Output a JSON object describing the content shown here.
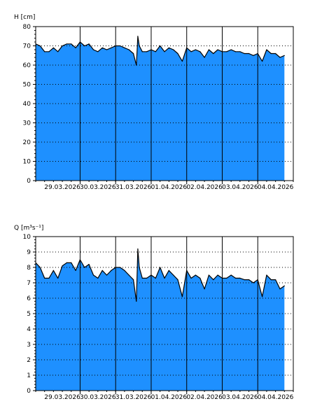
{
  "colors": {
    "fill": "#1E90FF",
    "line": "#000000",
    "grid": "#000000",
    "background": "#FFFFFF"
  },
  "chart_data": [
    {
      "type": "area",
      "title": "",
      "ylabel": "H [cm]",
      "xlabel": "",
      "ylim": [
        0,
        80
      ],
      "yticks": [
        0,
        10,
        20,
        30,
        40,
        50,
        60,
        70,
        80
      ],
      "xlim": [
        "2026-03-28T18:00",
        "2026-04-05T00:00"
      ],
      "x_tick_labels": [
        "29.03.2026",
        "30.03.2026",
        "31.03.2026",
        "01.04.2026",
        "02.04.2026",
        "03.04.2026",
        "04.04.2026"
      ],
      "grid": {
        "horizontal": "dotted",
        "vertical": "solid-at-day-boundaries"
      },
      "series": [
        {
          "x": [
            "2026-03-28T18:00",
            "2026-03-28T21:00",
            "2026-03-29T00:00",
            "2026-03-29T03:00",
            "2026-03-29T06:00",
            "2026-03-29T09:00",
            "2026-03-29T12:00",
            "2026-03-29T15:00",
            "2026-03-29T18:00",
            "2026-03-29T21:00",
            "2026-03-30T00:00",
            "2026-03-30T03:00",
            "2026-03-30T06:00",
            "2026-03-30T09:00",
            "2026-03-30T12:00",
            "2026-03-30T15:00",
            "2026-03-30T18:00",
            "2026-03-30T21:00",
            "2026-03-31T00:00",
            "2026-03-31T03:00",
            "2026-03-31T06:00",
            "2026-03-31T09:00",
            "2026-03-31T12:00",
            "2026-03-31T14:00",
            "2026-03-31T15:00",
            "2026-03-31T16:00",
            "2026-03-31T18:00",
            "2026-03-31T21:00",
            "2026-04-01T00:00",
            "2026-04-01T03:00",
            "2026-04-01T06:00",
            "2026-04-01T09:00",
            "2026-04-01T12:00",
            "2026-04-01T15:00",
            "2026-04-01T18:00",
            "2026-04-01T21:00",
            "2026-04-02T00:00",
            "2026-04-02T03:00",
            "2026-04-02T06:00",
            "2026-04-02T09:00",
            "2026-04-02T12:00",
            "2026-04-02T15:00",
            "2026-04-02T18:00",
            "2026-04-02T21:00",
            "2026-04-03T00:00",
            "2026-04-03T03:00",
            "2026-04-03T06:00",
            "2026-04-03T09:00",
            "2026-04-03T12:00",
            "2026-04-03T15:00",
            "2026-04-03T18:00",
            "2026-04-03T21:00",
            "2026-04-04T00:00",
            "2026-04-04T03:00",
            "2026-04-04T06:00",
            "2026-04-04T09:00",
            "2026-04-04T12:00",
            "2026-04-04T15:00",
            "2026-04-04T18:00"
          ],
          "y": [
            71,
            70,
            67,
            67,
            69,
            67,
            70,
            71,
            71,
            69,
            72,
            70,
            71,
            68,
            67,
            69,
            68,
            69,
            70,
            70,
            69,
            68,
            66,
            60,
            75,
            70,
            67,
            67,
            68,
            67,
            70,
            67,
            69,
            68,
            66,
            62,
            69,
            67,
            68,
            67,
            64,
            68,
            66,
            68,
            67,
            67,
            68,
            67,
            67,
            66,
            66,
            65,
            66,
            62,
            68,
            66,
            66,
            64,
            65
          ]
        }
      ]
    },
    {
      "type": "area",
      "title": "",
      "ylabel": "Q [m³s⁻¹]",
      "xlabel": "",
      "ylim": [
        0,
        10
      ],
      "yticks": [
        0,
        1,
        2,
        3,
        4,
        5,
        6,
        7,
        8,
        9,
        10
      ],
      "xlim": [
        "2026-03-28T18:00",
        "2026-04-05T00:00"
      ],
      "x_tick_labels": [
        "29.03.2026",
        "30.03.2026",
        "31.03.2026",
        "01.04.2026",
        "02.04.2026",
        "03.04.2026",
        "04.04.2026"
      ],
      "grid": {
        "horizontal": "dotted",
        "vertical": "solid-at-day-boundaries"
      },
      "series": [
        {
          "x": [
            "2026-03-28T18:00",
            "2026-03-28T21:00",
            "2026-03-29T00:00",
            "2026-03-29T03:00",
            "2026-03-29T06:00",
            "2026-03-29T09:00",
            "2026-03-29T12:00",
            "2026-03-29T15:00",
            "2026-03-29T18:00",
            "2026-03-29T21:00",
            "2026-03-30T00:00",
            "2026-03-30T03:00",
            "2026-03-30T06:00",
            "2026-03-30T09:00",
            "2026-03-30T12:00",
            "2026-03-30T15:00",
            "2026-03-30T18:00",
            "2026-03-30T21:00",
            "2026-03-31T00:00",
            "2026-03-31T03:00",
            "2026-03-31T06:00",
            "2026-03-31T09:00",
            "2026-03-31T12:00",
            "2026-03-31T14:00",
            "2026-03-31T15:00",
            "2026-03-31T16:00",
            "2026-03-31T18:00",
            "2026-03-31T21:00",
            "2026-04-01T00:00",
            "2026-04-01T03:00",
            "2026-04-01T06:00",
            "2026-04-01T09:00",
            "2026-04-01T12:00",
            "2026-04-01T15:00",
            "2026-04-01T18:00",
            "2026-04-01T21:00",
            "2026-04-02T00:00",
            "2026-04-02T03:00",
            "2026-04-02T06:00",
            "2026-04-02T09:00",
            "2026-04-02T12:00",
            "2026-04-02T15:00",
            "2026-04-02T18:00",
            "2026-04-02T21:00",
            "2026-04-03T00:00",
            "2026-04-03T03:00",
            "2026-04-03T06:00",
            "2026-04-03T09:00",
            "2026-04-03T12:00",
            "2026-04-03T15:00",
            "2026-04-03T18:00",
            "2026-04-03T21:00",
            "2026-04-04T00:00",
            "2026-04-04T03:00",
            "2026-04-04T06:00",
            "2026-04-04T09:00",
            "2026-04-04T12:00",
            "2026-04-04T15:00",
            "2026-04-04T18:00"
          ],
          "y": [
            8.3,
            8.0,
            7.3,
            7.3,
            7.8,
            7.3,
            8.1,
            8.3,
            8.3,
            7.8,
            8.5,
            8.0,
            8.2,
            7.5,
            7.3,
            7.8,
            7.5,
            7.8,
            8.0,
            8.0,
            7.8,
            7.5,
            7.2,
            5.8,
            9.2,
            8.0,
            7.3,
            7.3,
            7.5,
            7.3,
            8.0,
            7.3,
            7.8,
            7.5,
            7.2,
            6.1,
            7.8,
            7.3,
            7.5,
            7.3,
            6.6,
            7.5,
            7.2,
            7.5,
            7.3,
            7.3,
            7.5,
            7.3,
            7.3,
            7.2,
            7.2,
            7.0,
            7.2,
            6.1,
            7.5,
            7.2,
            7.2,
            6.6,
            6.8
          ]
        }
      ]
    }
  ]
}
